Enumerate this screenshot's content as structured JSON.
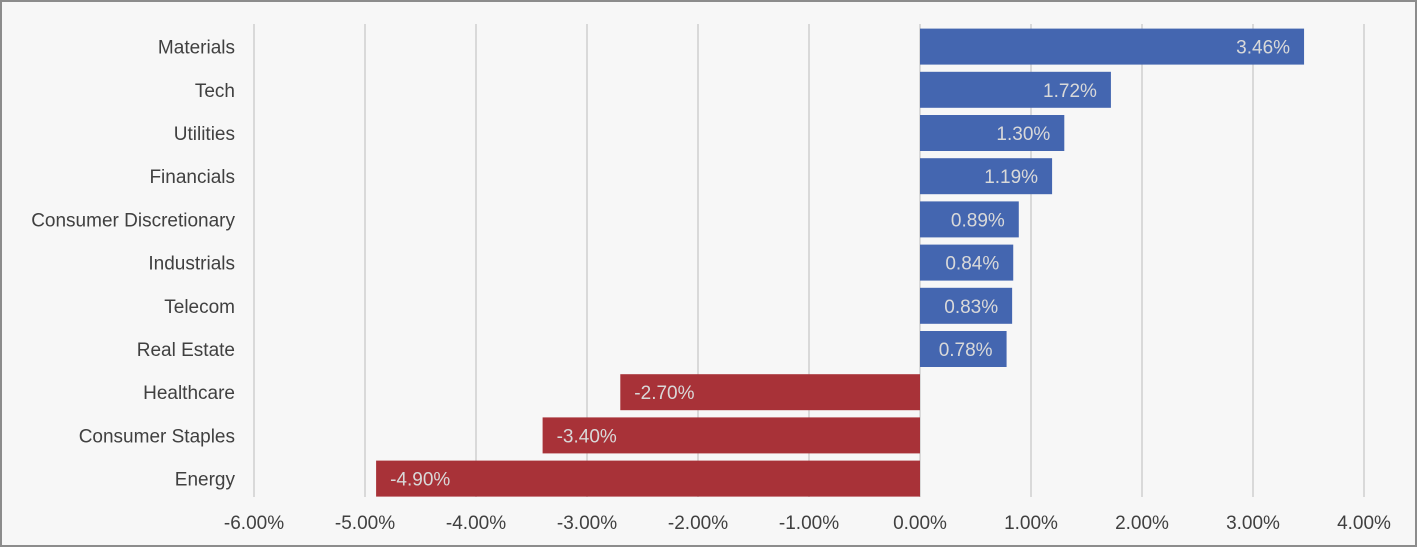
{
  "chart_data": {
    "type": "bar",
    "orientation": "horizontal",
    "categories": [
      "Materials",
      "Tech",
      "Utilities",
      "Financials",
      "Consumer Discretionary",
      "Industrials",
      "Telecom",
      "Real Estate",
      "Healthcare",
      "Consumer Staples",
      "Energy"
    ],
    "values": [
      3.46,
      1.72,
      1.3,
      1.19,
      0.89,
      0.84,
      0.83,
      0.78,
      -2.7,
      -3.4,
      -4.9
    ],
    "data_labels": [
      "3.46%",
      "1.72%",
      "1.30%",
      "1.19%",
      "0.89%",
      "0.84%",
      "0.83%",
      "0.78%",
      "-2.70%",
      "-3.40%",
      "-4.90%"
    ],
    "x_ticks": [
      -6,
      -5,
      -4,
      -3,
      -2,
      -1,
      0,
      1,
      2,
      3,
      4
    ],
    "x_tick_labels": [
      "-6.00%",
      "-5.00%",
      "-4.00%",
      "-3.00%",
      "-2.00%",
      "-1.00%",
      "0.00%",
      "1.00%",
      "2.00%",
      "3.00%",
      "4.00%"
    ],
    "xlim": [
      -6,
      4
    ],
    "grid": true,
    "legend": "none",
    "colors": {
      "positive": "#4466b0",
      "negative": "#a83238",
      "grid": "#d9d9d9"
    },
    "title": "",
    "xlabel": "",
    "ylabel": ""
  }
}
